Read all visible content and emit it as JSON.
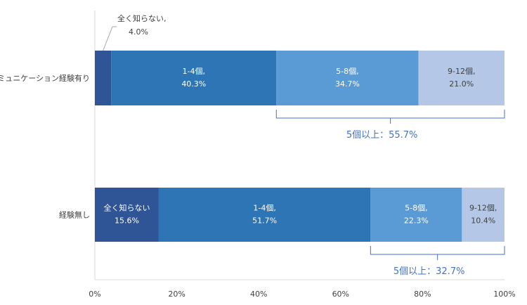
{
  "chart_data": {
    "type": "bar",
    "orientation": "horizontal",
    "stacked": true,
    "categories": [
      "コミュニケーション経験有り",
      "経験無し"
    ],
    "series": [
      {
        "values": [
          4.0,
          15.6
        ],
        "labels": [
          "",
          "全く知らない"
        ],
        "color": "#2f5597"
      },
      {
        "values": [
          40.3,
          51.7
        ],
        "labels": [
          "1-4個,",
          "1-4個,"
        ],
        "color": "#2e75b6"
      },
      {
        "values": [
          34.7,
          22.3
        ],
        "labels": [
          "5-8個,",
          "5-8個,"
        ],
        "color": "#5b9bd5"
      },
      {
        "values": [
          21.0,
          10.4
        ],
        "labels": [
          "9-12個,",
          "9-12個,"
        ],
        "color": "#b4c7e7"
      }
    ],
    "value_labels": [
      [
        "4.0%",
        "40.3%",
        "34.7%",
        "21.0%"
      ],
      [
        "15.6%",
        "51.7%",
        "22.3%",
        "10.4%"
      ]
    ],
    "callouts": [
      {
        "lines": [
          "全く知らない,",
          "4.0%"
        ]
      }
    ],
    "braces": [
      {
        "from": 44.3,
        "to": 100,
        "text": "5個以上：55.7%"
      },
      {
        "from": 67.3,
        "to": 100,
        "text": "5個以上：32.7%"
      }
    ],
    "brace_color": "#4472c4",
    "xlim": [
      0,
      100
    ],
    "xticks": [
      "0%",
      "20%",
      "40%",
      "60%",
      "80%",
      "100%"
    ],
    "grid": false,
    "legend": "none"
  }
}
